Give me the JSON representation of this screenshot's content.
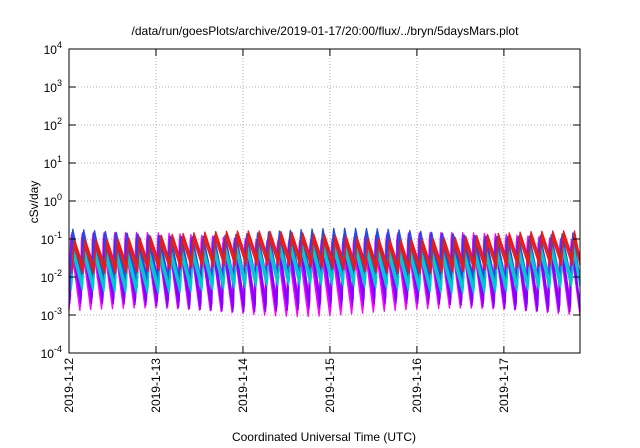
{
  "chart_data": {
    "type": "line",
    "title": "/data/run/goesPlots/archive/2019-01-17/20:00/flux/../bryn/5daysMars.plot",
    "xlabel": "Coordinated Universal Time (UTC)",
    "ylabel": "cSv/day",
    "y_scale": "log",
    "ylim": [
      0.0001,
      10000
    ],
    "y_ticks": [
      {
        "value": 0.0001,
        "base": "10",
        "exp": "-4"
      },
      {
        "value": 0.001,
        "base": "10",
        "exp": "-3"
      },
      {
        "value": 0.01,
        "base": "10",
        "exp": "-2"
      },
      {
        "value": 0.1,
        "base": "10",
        "exp": "-1"
      },
      {
        "value": 1,
        "base": "10",
        "exp": "0"
      },
      {
        "value": 10,
        "base": "10",
        "exp": "1"
      },
      {
        "value": 100,
        "base": "10",
        "exp": "2"
      },
      {
        "value": 1000,
        "base": "10",
        "exp": "3"
      },
      {
        "value": 10000,
        "base": "10",
        "exp": "4"
      }
    ],
    "xlim": [
      "2019-01-12",
      "2019-01-17T21:00"
    ],
    "x_ticks": [
      "2019-1-12",
      "2019-1-13",
      "2019-1-14",
      "2019-1-15",
      "2019-1-16",
      "2019-1-17"
    ],
    "grid": true,
    "series_pattern": {
      "description_values": "sawtooth bands repeating about every 3 hours",
      "period_hours": 3,
      "bands": [
        {
          "color": "#ff00ff",
          "peak": 0.1,
          "trough": 0.0015
        },
        {
          "color": "#8800ff",
          "peak": 0.1,
          "trough": 0.002
        },
        {
          "color": "#1f4fe0",
          "peak": 0.13,
          "trough": 0.008
        },
        {
          "color": "#00c8d0",
          "peak": 0.05,
          "trough": 0.006
        },
        {
          "color": "#e81a1a",
          "peak": 0.11,
          "trough": 0.02
        }
      ]
    }
  }
}
